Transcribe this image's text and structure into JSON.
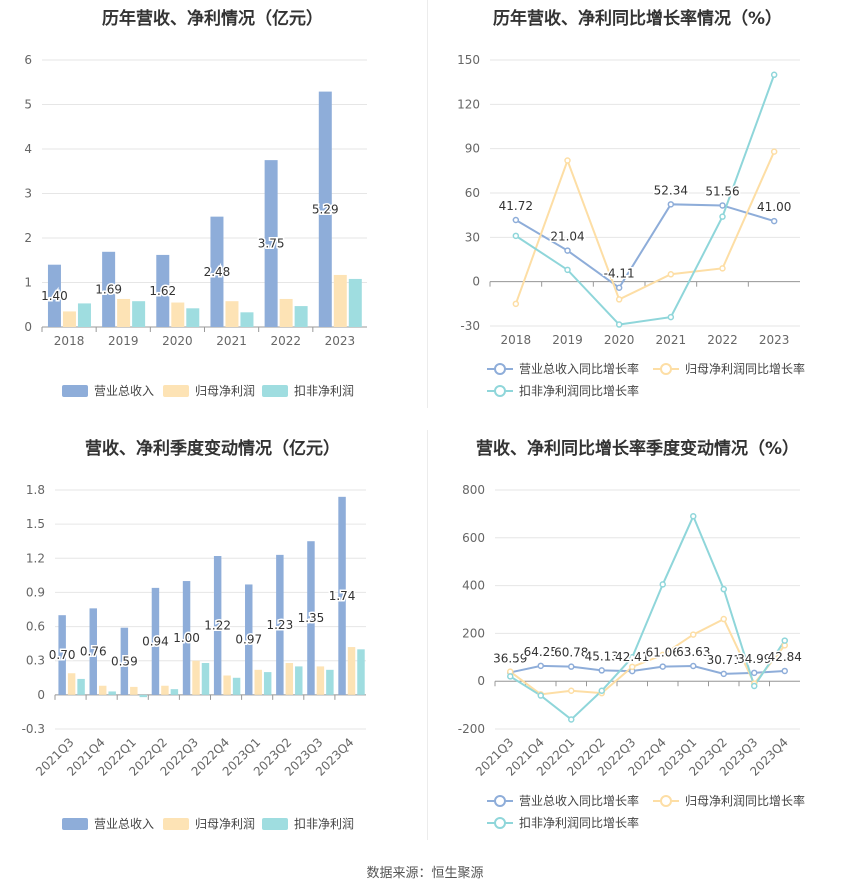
{
  "source": "数据来源：恒生聚源",
  "colors": {
    "revenue": "#8eadd9",
    "net_profit": "#fde3b5",
    "deducted_profit": "#9fdde0",
    "line_revenue": "#8eadd9",
    "line_net": "#fddea5",
    "line_deducted": "#8fd6da"
  },
  "charts": [
    {
      "title": "历年营收、净利情况（亿元）",
      "chart_data": {
        "type": "bar",
        "categories": [
          "2018",
          "2019",
          "2020",
          "2021",
          "2022",
          "2023"
        ],
        "ylim": [
          0,
          6
        ],
        "yticks": [
          0,
          1,
          2,
          3,
          4,
          5,
          6
        ],
        "grid": true,
        "series": [
          {
            "name": "营业总收入",
            "values": [
              1.4,
              1.69,
              1.62,
              2.48,
              3.75,
              5.29
            ],
            "labels": [
              "1.40",
              "1.69",
              "1.62",
              "2.48",
              "3.75",
              "5.29"
            ]
          },
          {
            "name": "归母净利润",
            "values": [
              0.35,
              0.63,
              0.55,
              0.58,
              0.63,
              1.17
            ]
          },
          {
            "name": "扣非净利润",
            "values": [
              0.53,
              0.58,
              0.42,
              0.33,
              0.47,
              1.08
            ]
          }
        ],
        "legend_position": "bottom"
      }
    },
    {
      "title": "历年营收、净利同比增长率情况（%）",
      "chart_data": {
        "type": "line",
        "categories": [
          "2018",
          "2019",
          "2020",
          "2021",
          "2022",
          "2023"
        ],
        "ylim": [
          -30,
          150
        ],
        "yticks": [
          -30,
          0,
          30,
          60,
          90,
          120,
          150
        ],
        "grid": true,
        "series": [
          {
            "name": "营业总收入同比增长率",
            "values": [
              41.72,
              21.04,
              -4.11,
              52.34,
              51.56,
              41.0
            ],
            "labels": [
              "41.72",
              "21.04",
              "-4.11",
              "52.34",
              "51.56",
              "41.00"
            ]
          },
          {
            "name": "归母净利润同比增长率",
            "values": [
              -15,
              82,
              -12,
              5,
              9,
              88
            ]
          },
          {
            "name": "扣非净利润同比增长率",
            "values": [
              31,
              8,
              -29,
              -24,
              44,
              140
            ]
          }
        ],
        "legend_position": "bottom"
      }
    },
    {
      "title": "营收、净利季度变动情况（亿元）",
      "chart_data": {
        "type": "bar",
        "categories": [
          "2021Q3",
          "2021Q4",
          "2022Q1",
          "2022Q2",
          "2022Q3",
          "2022Q4",
          "2023Q1",
          "2023Q2",
          "2023Q3",
          "2023Q4"
        ],
        "ylim": [
          -0.3,
          1.8
        ],
        "yticks": [
          -0.3,
          0,
          0.3,
          0.6,
          0.9,
          1.2,
          1.5,
          1.8
        ],
        "grid": true,
        "series": [
          {
            "name": "营业总收入",
            "values": [
              0.7,
              0.76,
              0.59,
              0.94,
              1.0,
              1.22,
              0.97,
              1.23,
              1.35,
              1.74
            ],
            "labels": [
              "0.70",
              "0.76",
              "0.59",
              "0.94",
              "1.00",
              "1.22",
              "0.97",
              "1.23",
              "1.35",
              "1.74"
            ]
          },
          {
            "name": "归母净利润",
            "values": [
              0.19,
              0.08,
              0.07,
              0.08,
              0.3,
              0.17,
              0.22,
              0.28,
              0.25,
              0.42
            ]
          },
          {
            "name": "扣非净利润",
            "values": [
              0.14,
              0.03,
              -0.02,
              0.05,
              0.28,
              0.15,
              0.2,
              0.25,
              0.22,
              0.4
            ]
          }
        ],
        "legend_position": "bottom"
      }
    },
    {
      "title": "营收、净利同比增长率季度变动情况（%）",
      "chart_data": {
        "type": "line",
        "categories": [
          "2021Q3",
          "2021Q4",
          "2022Q1",
          "2022Q2",
          "2022Q3",
          "2022Q4",
          "2023Q1",
          "2023Q2",
          "2023Q3",
          "2023Q4"
        ],
        "ylim": [
          -200,
          800
        ],
        "yticks": [
          -200,
          0,
          200,
          400,
          600,
          800
        ],
        "grid": true,
        "series": [
          {
            "name": "营业总收入同比增长率",
            "values": [
              36.59,
              64.25,
              60.78,
              45.13,
              42.41,
              61.06,
              63.63,
              30.71,
              34.99,
              42.84
            ],
            "labels": [
              "36.59",
              "64.25",
              "60.78",
              "45.13",
              "42.41",
              "61.06",
              "63.63",
              "30.71",
              "34.99",
              "42.84"
            ]
          },
          {
            "name": "归母净利润同比增长率",
            "values": [
              40,
              -55,
              -40,
              -50,
              60,
              110,
              195,
              260,
              -10,
              150
            ]
          },
          {
            "name": "扣非净利润同比增长率",
            "values": [
              20,
              -60,
              -160,
              -40,
              100,
              405,
              690,
              385,
              -20,
              170
            ]
          }
        ],
        "legend_position": "bottom"
      }
    }
  ]
}
